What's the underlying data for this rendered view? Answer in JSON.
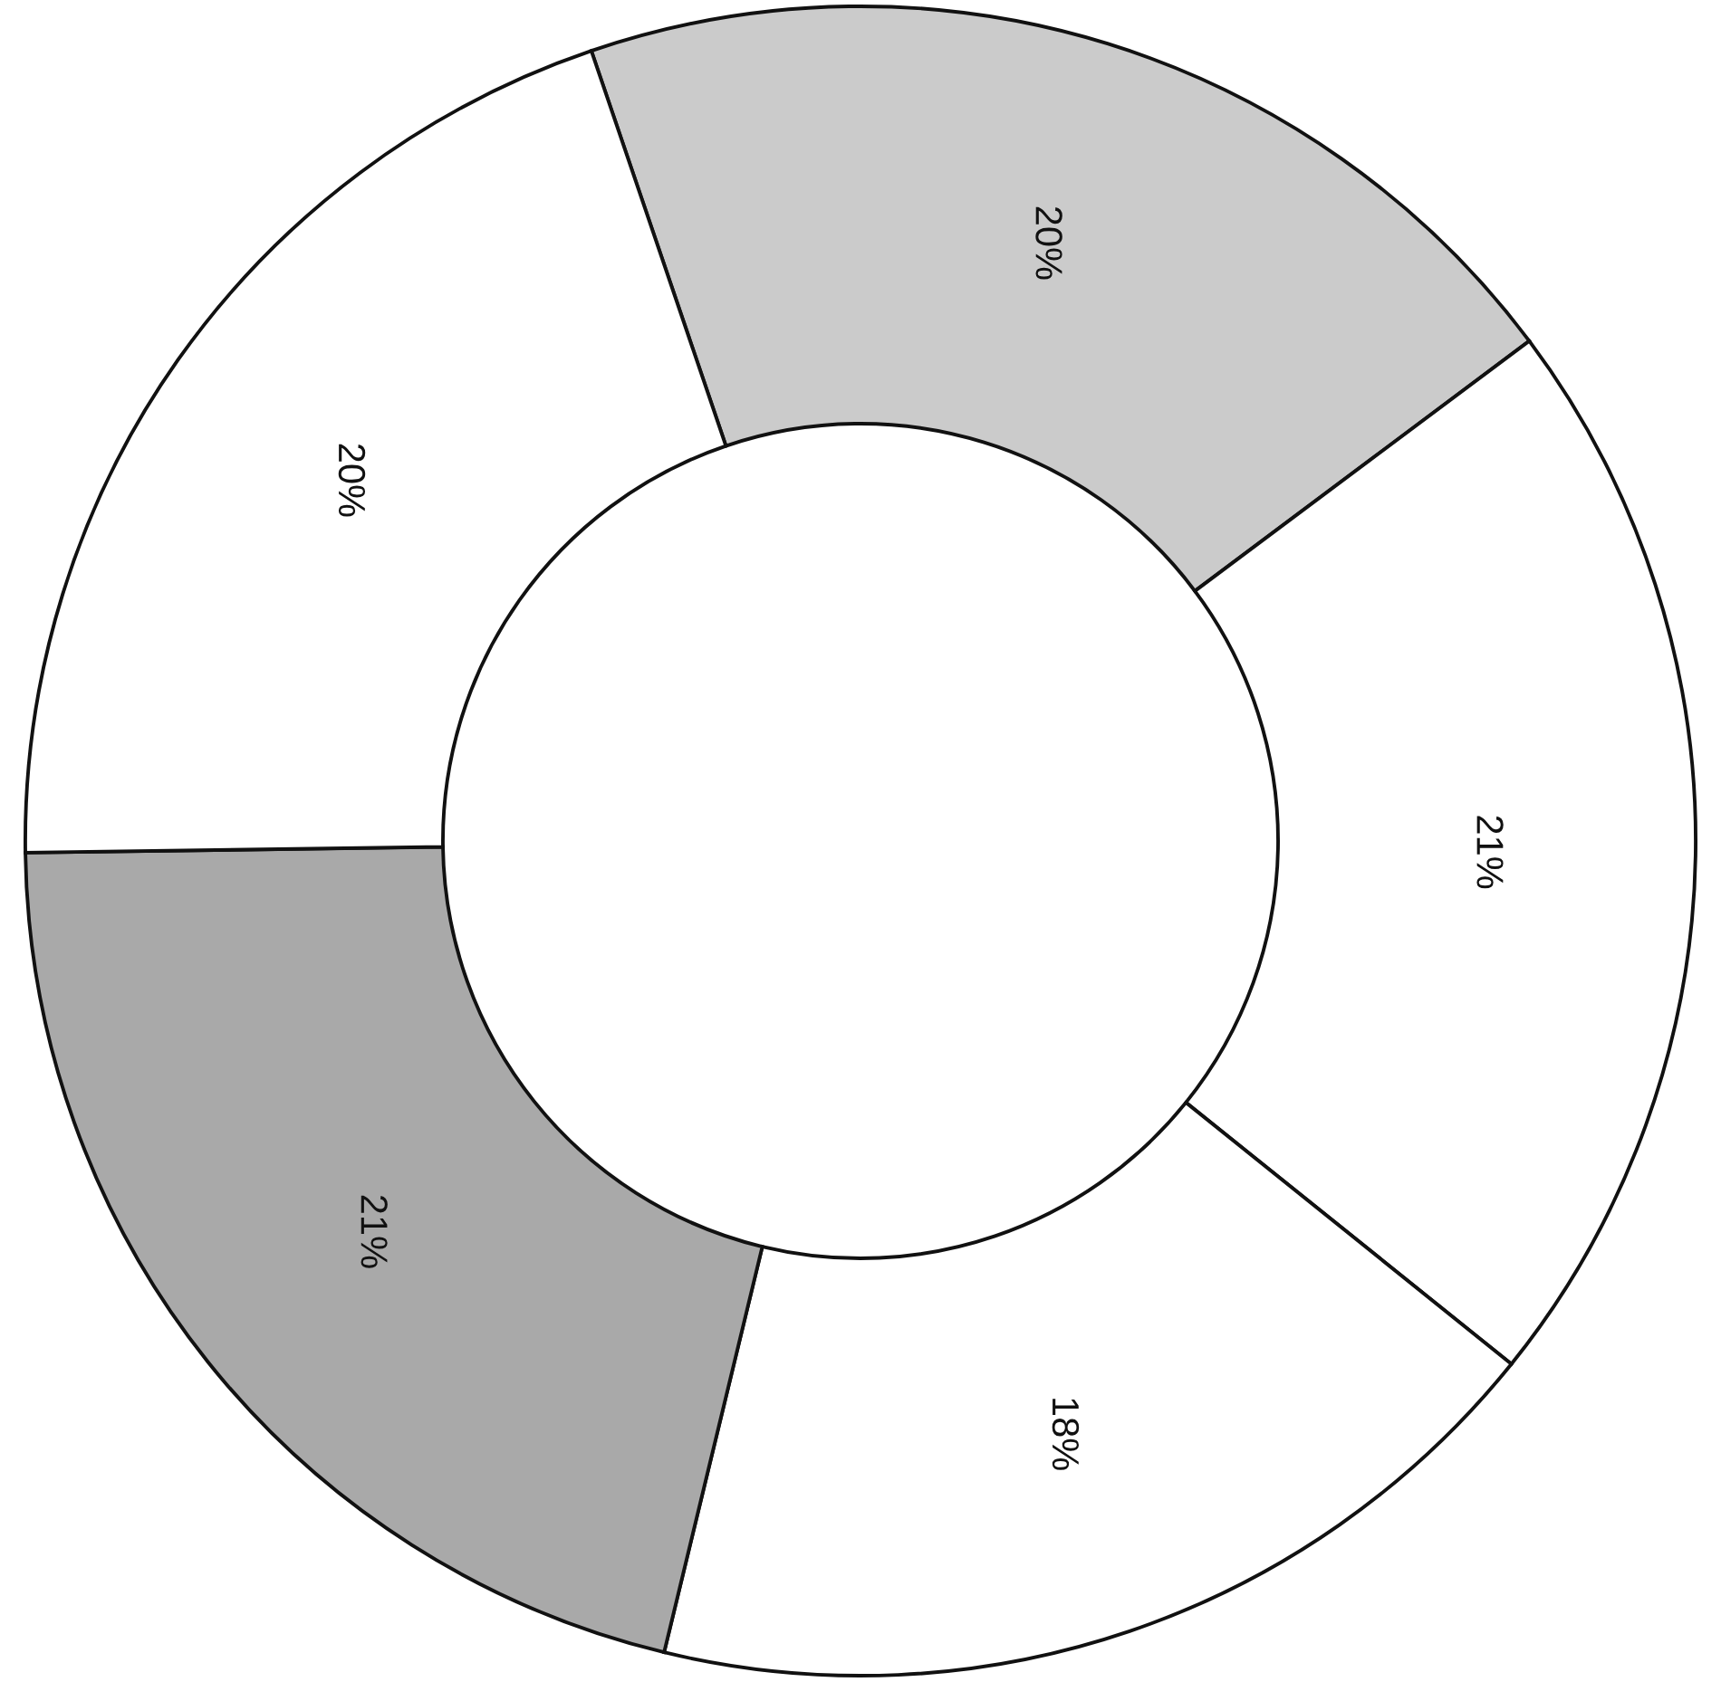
{
  "chart_data": {
    "type": "donut",
    "categories": [
      null,
      null,
      null,
      null,
      null
    ],
    "values": [
      20,
      21,
      18,
      21,
      20
    ],
    "colors": [
      "#cbcbcb",
      "#ffffff",
      "#ffffff",
      "#a9a9a9",
      "#ffffff"
    ],
    "value_labels": [
      "20%",
      "21%",
      "18%",
      "21%",
      "20%"
    ]
  }
}
